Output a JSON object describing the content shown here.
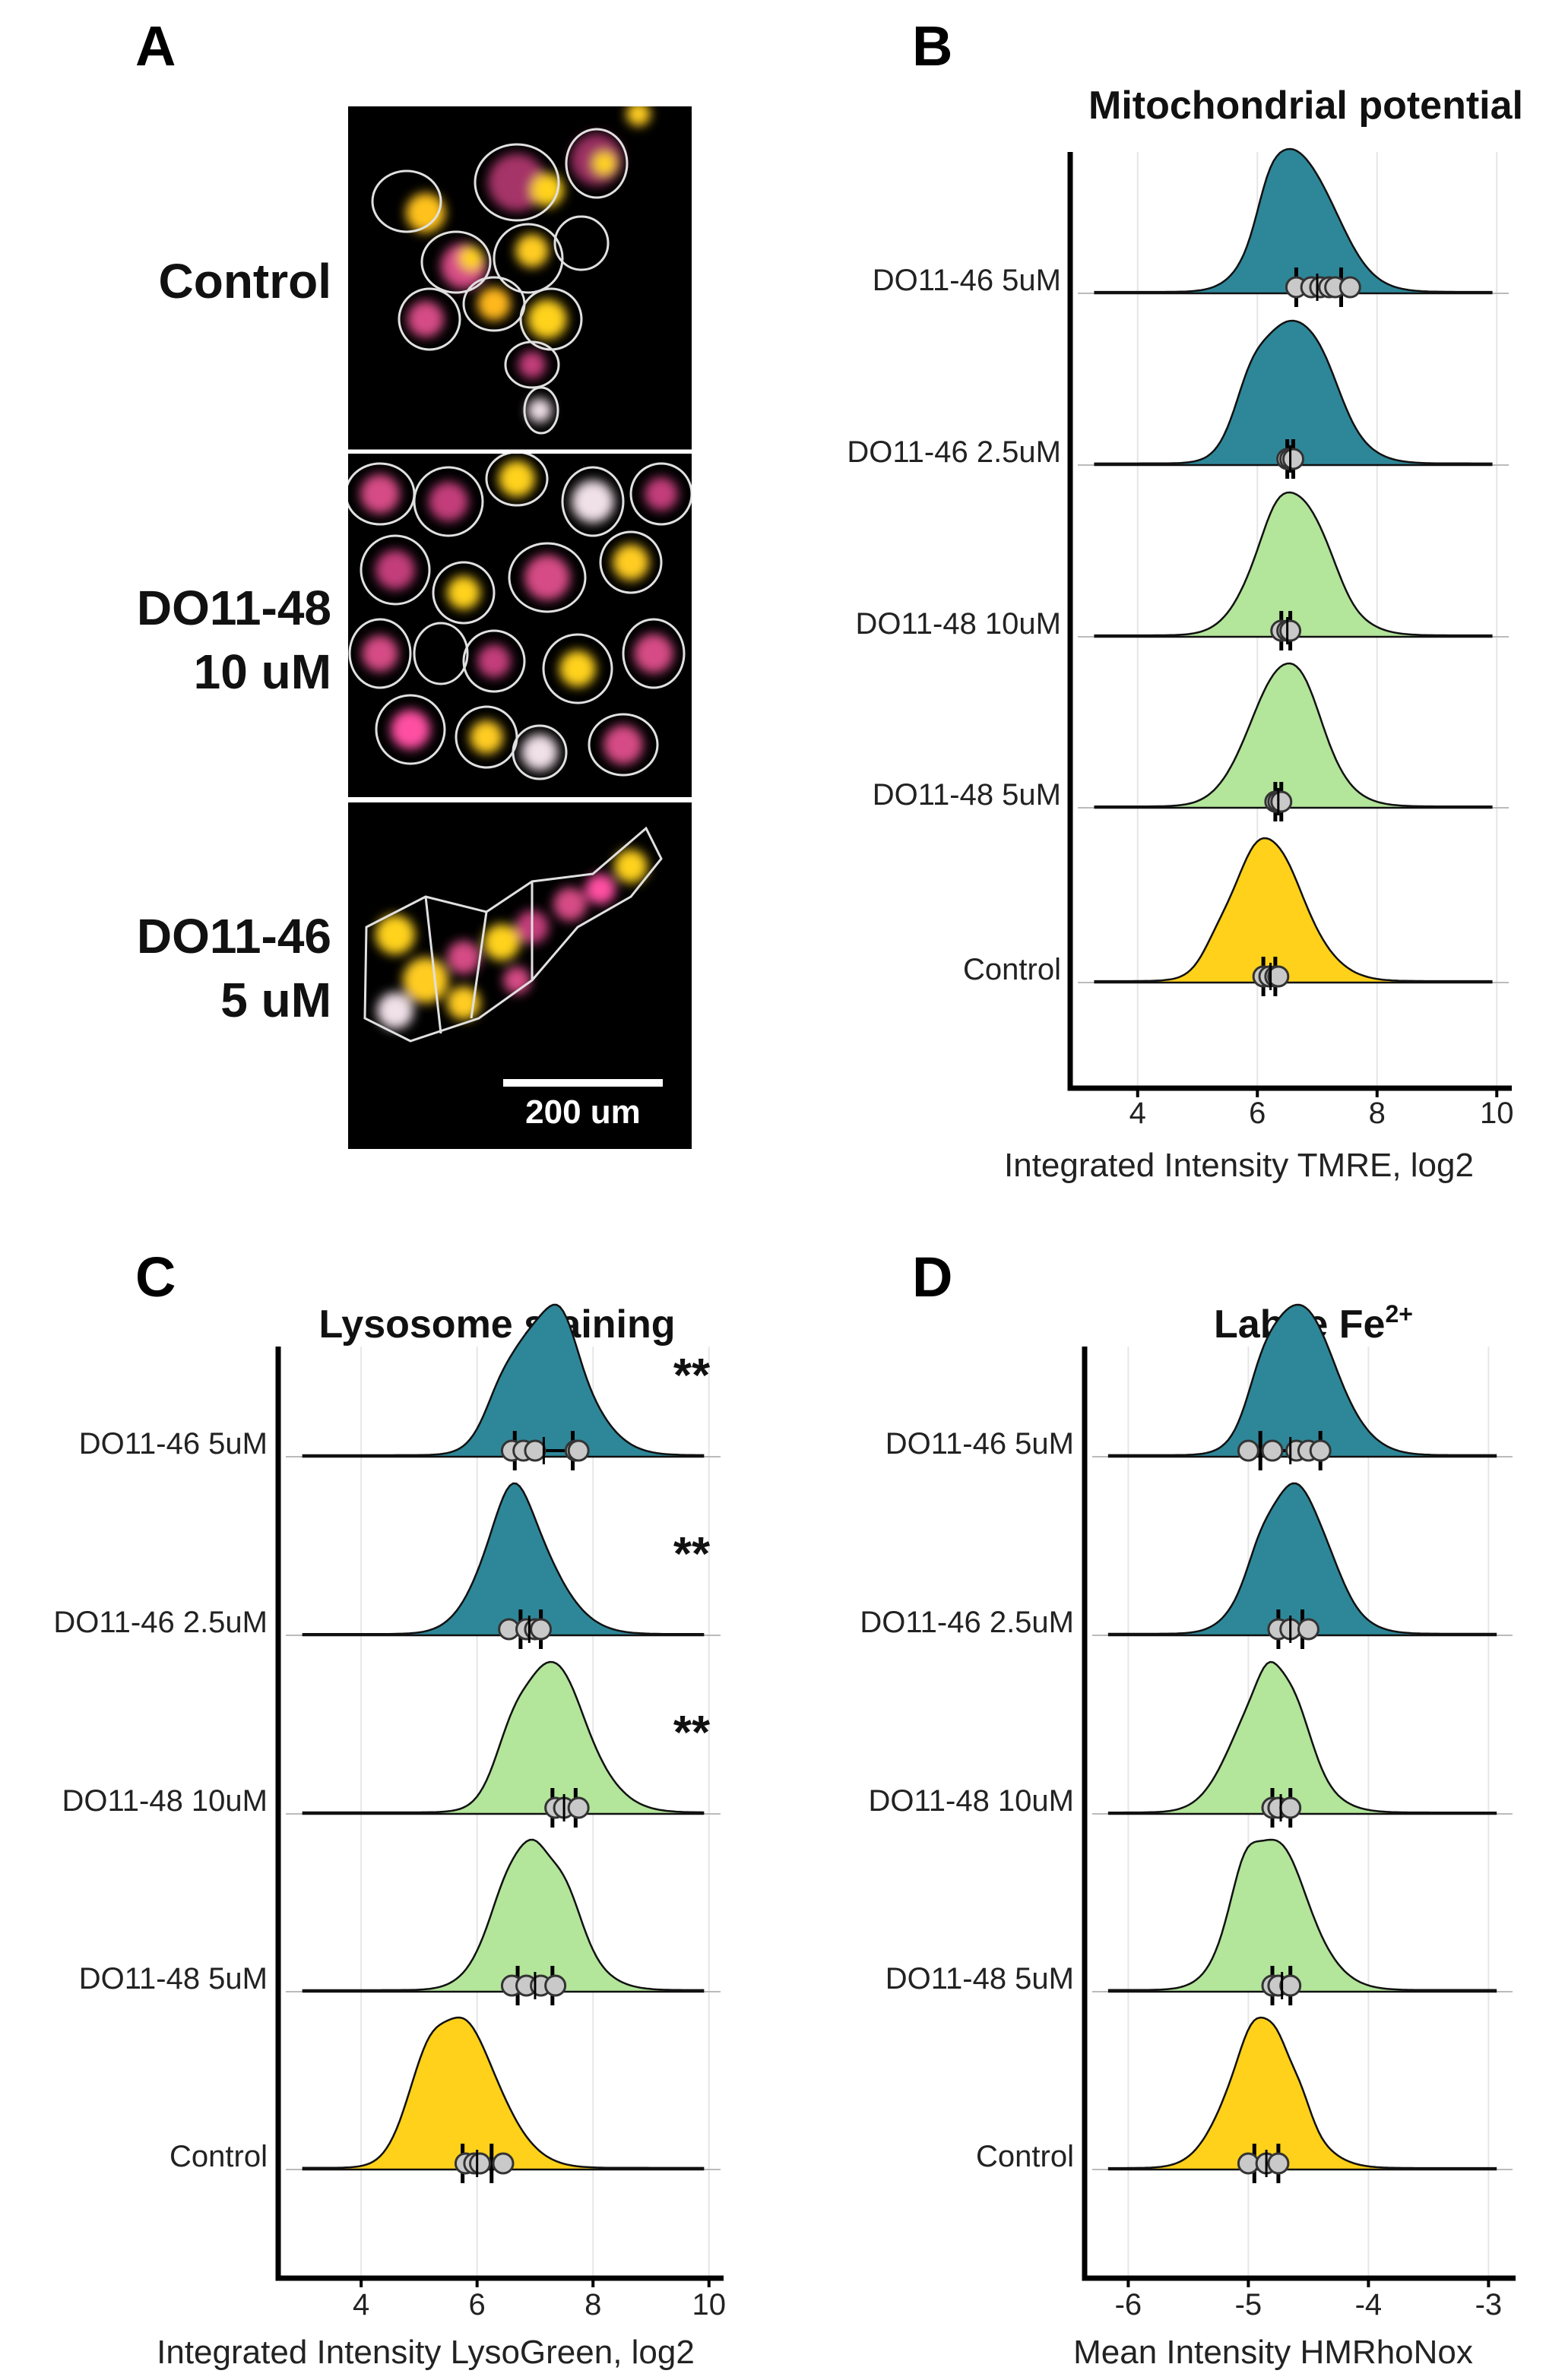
{
  "panel_a": {
    "letter": "A",
    "rows": [
      {
        "line1": "Control",
        "line2": ""
      },
      {
        "line1": "DO11-48",
        "line2": "10 uM"
      },
      {
        "line1": "DO11-46",
        "line2": "5 uM"
      }
    ],
    "scale_bar_label": "200 um"
  },
  "colors": {
    "DO11-46": "#2e8799",
    "DO11-48": "#b3e59a",
    "Control": "#ffd11a"
  },
  "chart_data": [
    {
      "panel": "B",
      "type": "ridgeline",
      "title": "Mitochondrial potential",
      "xlabel": "Integrated Intensity TMRE, log2",
      "xlim": [
        3,
        10.2
      ],
      "xticks": [
        4,
        6,
        8,
        10
      ],
      "grid": true,
      "categories": [
        "DO11-46 5uM",
        "DO11-46 2.5uM",
        "DO11-48 10uM",
        "DO11-48 5uM",
        "Control"
      ],
      "series": [
        {
          "name": "DO11-46 5uM",
          "group": "DO11-46",
          "peak": 6.6,
          "replicates": [
            6.65,
            6.9,
            7.05,
            7.2,
            7.3,
            7.55
          ],
          "mean": 7.0,
          "ci": [
            6.65,
            7.4
          ]
        },
        {
          "name": "DO11-46 2.5uM",
          "group": "DO11-46",
          "peak": 6.5,
          "replicates": [
            6.5,
            6.55,
            6.6
          ],
          "mean": 6.55,
          "ci": [
            6.5,
            6.6
          ]
        },
        {
          "name": "DO11-48 10uM",
          "group": "DO11-48",
          "peak": 6.45,
          "replicates": [
            6.4,
            6.5,
            6.55
          ],
          "mean": 6.5,
          "ci": [
            6.4,
            6.55
          ]
        },
        {
          "name": "DO11-48 5uM",
          "group": "DO11-48",
          "peak": 6.3,
          "replicates": [
            6.3,
            6.35,
            6.4
          ],
          "mean": 6.35,
          "ci": [
            6.3,
            6.4
          ]
        },
        {
          "name": "Control",
          "group": "Control",
          "peak": 6.1,
          "replicates": [
            6.1,
            6.2,
            6.3,
            6.35
          ],
          "mean": 6.22,
          "ci": [
            6.1,
            6.3
          ]
        }
      ],
      "annotations": []
    },
    {
      "panel": "C",
      "type": "ridgeline",
      "title": "Lysosome staining",
      "xlabel": "Integrated Intensity LysoGreen, log2",
      "xlim": [
        2.7,
        10.2
      ],
      "xticks": [
        4,
        6,
        8,
        10
      ],
      "grid": true,
      "categories": [
        "DO11-46 5uM",
        "DO11-46 2.5uM",
        "DO11-48 10uM",
        "DO11-48 5uM",
        "Control"
      ],
      "series": [
        {
          "name": "DO11-46 5uM",
          "group": "DO11-46",
          "peak": 7.1,
          "replicates": [
            6.6,
            6.8,
            7.0,
            7.7,
            7.75
          ],
          "mean": 7.15,
          "ci": [
            6.65,
            7.65
          ]
        },
        {
          "name": "DO11-46 2.5uM",
          "group": "DO11-46",
          "peak": 6.6,
          "replicates": [
            6.55,
            6.85,
            7.0,
            7.1
          ],
          "mean": 6.9,
          "ci": [
            6.75,
            7.1
          ]
        },
        {
          "name": "DO11-48 10uM",
          "group": "DO11-48",
          "peak": 7.2,
          "replicates": [
            7.35,
            7.5,
            7.75
          ],
          "mean": 7.5,
          "ci": [
            7.3,
            7.7
          ]
        },
        {
          "name": "DO11-48 5uM",
          "group": "DO11-48",
          "peak": 6.85,
          "replicates": [
            6.6,
            6.85,
            7.1,
            7.35
          ],
          "mean": 7.0,
          "ci": [
            6.7,
            7.3
          ]
        },
        {
          "name": "Control",
          "group": "Control",
          "peak": 5.65,
          "replicates": [
            5.8,
            5.95,
            6.05,
            6.45
          ],
          "mean": 6.0,
          "ci": [
            5.75,
            6.25
          ]
        }
      ],
      "annotations": [
        {
          "category": "DO11-46 5uM",
          "text": "**"
        },
        {
          "category": "DO11-46 2.5uM",
          "text": "**"
        },
        {
          "category": "DO11-48 10uM",
          "text": "**"
        }
      ]
    },
    {
      "panel": "D",
      "type": "ridgeline",
      "title_main": "Labile Fe",
      "title_sup": "2+",
      "xlabel": "Mean Intensity HMRhoNox",
      "xlim": [
        -6.3,
        -2.8
      ],
      "xticks": [
        -6,
        -5,
        -4,
        -3
      ],
      "grid": true,
      "categories": [
        "DO11-46 5uM",
        "DO11-46 2.5uM",
        "DO11-48 10uM",
        "DO11-48 5uM",
        "Control"
      ],
      "series": [
        {
          "name": "DO11-46 5uM",
          "group": "DO11-46",
          "peak": -4.6,
          "replicates": [
            -5.0,
            -4.8,
            -4.6,
            -4.5,
            -4.4
          ],
          "mean": -4.65,
          "ci": [
            -4.9,
            -4.4
          ]
        },
        {
          "name": "DO11-46 2.5uM",
          "group": "DO11-46",
          "peak": -4.7,
          "replicates": [
            -4.75,
            -4.65,
            -4.5
          ],
          "mean": -4.65,
          "ci": [
            -4.75,
            -4.55
          ]
        },
        {
          "name": "DO11-48 10uM",
          "group": "DO11-48",
          "peak": -4.9,
          "replicates": [
            -4.8,
            -4.75,
            -4.65
          ],
          "mean": -4.73,
          "ci": [
            -4.8,
            -4.65
          ]
        },
        {
          "name": "DO11-48 5uM",
          "group": "DO11-48",
          "peak": -4.85,
          "replicates": [
            -4.8,
            -4.75,
            -4.65
          ],
          "mean": -4.72,
          "ci": [
            -4.8,
            -4.65
          ]
        },
        {
          "name": "Control",
          "group": "Control",
          "peak": -4.95,
          "replicates": [
            -5.0,
            -4.85,
            -4.75
          ],
          "mean": -4.85,
          "ci": [
            -4.95,
            -4.75
          ]
        }
      ],
      "annotations": []
    }
  ]
}
